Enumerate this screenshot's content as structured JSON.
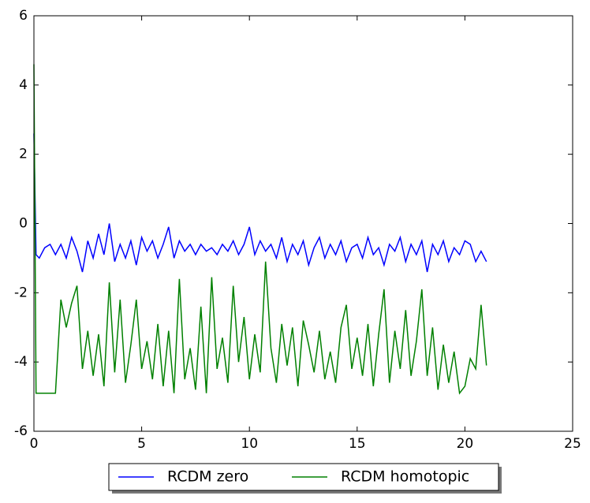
{
  "chart_data": {
    "type": "line",
    "x": [
      0,
      0.1,
      0.25,
      0.5,
      0.75,
      1,
      1.25,
      1.5,
      1.75,
      2,
      2.25,
      2.5,
      2.75,
      3,
      3.25,
      3.5,
      3.75,
      4,
      4.25,
      4.5,
      4.75,
      5,
      5.25,
      5.5,
      5.75,
      6,
      6.25,
      6.5,
      6.75,
      7,
      7.25,
      7.5,
      7.75,
      8,
      8.25,
      8.5,
      8.75,
      9,
      9.25,
      9.5,
      9.75,
      10,
      10.25,
      10.5,
      10.75,
      11,
      11.25,
      11.5,
      11.75,
      12,
      12.25,
      12.5,
      12.75,
      13,
      13.25,
      13.5,
      13.75,
      14,
      14.25,
      14.5,
      14.75,
      15,
      15.25,
      15.5,
      15.75,
      16,
      16.25,
      16.5,
      16.75,
      17,
      17.25,
      17.5,
      17.75,
      18,
      18.25,
      18.5,
      18.75,
      19,
      19.25,
      19.5,
      19.75,
      20,
      20.25,
      20.5,
      20.75,
      21
    ],
    "series": [
      {
        "name": "RCDM zero",
        "color": "#0000ff",
        "values": [
          2.6,
          -0.9,
          -1.0,
          -0.7,
          -0.6,
          -0.9,
          -0.6,
          -1.0,
          -0.4,
          -0.8,
          -1.4,
          -0.5,
          -1.0,
          -0.3,
          -0.9,
          0.0,
          -1.1,
          -0.6,
          -1.0,
          -0.5,
          -1.2,
          -0.4,
          -0.8,
          -0.5,
          -1.0,
          -0.6,
          -0.1,
          -1.0,
          -0.5,
          -0.8,
          -0.6,
          -0.9,
          -0.6,
          -0.8,
          -0.7,
          -0.9,
          -0.6,
          -0.8,
          -0.5,
          -0.9,
          -0.6,
          -0.1,
          -0.9,
          -0.5,
          -0.8,
          -0.6,
          -1.0,
          -0.4,
          -1.1,
          -0.6,
          -0.9,
          -0.5,
          -1.2,
          -0.7,
          -0.4,
          -1.0,
          -0.6,
          -0.9,
          -0.5,
          -1.1,
          -0.7,
          -0.6,
          -1.0,
          -0.4,
          -0.9,
          -0.7,
          -1.2,
          -0.6,
          -0.8,
          -0.4,
          -1.1,
          -0.6,
          -0.9,
          -0.5,
          -1.4,
          -0.6,
          -0.9,
          -0.5,
          -1.1,
          -0.7,
          -0.9,
          -0.5,
          -0.6,
          -1.1,
          -0.8,
          -1.1
        ]
      },
      {
        "name": "RCDM homotopic",
        "color": "#008000",
        "values": [
          4.6,
          -4.9,
          -4.9,
          -4.9,
          -4.9,
          -4.9,
          -2.2,
          -3.0,
          -2.3,
          -1.8,
          -4.2,
          -3.1,
          -4.4,
          -3.2,
          -4.7,
          -1.7,
          -4.3,
          -2.2,
          -4.6,
          -3.5,
          -2.2,
          -4.2,
          -3.4,
          -4.5,
          -2.9,
          -4.7,
          -3.1,
          -4.9,
          -1.6,
          -4.5,
          -3.6,
          -4.8,
          -2.4,
          -4.9,
          -1.55,
          -4.2,
          -3.3,
          -4.6,
          -1.8,
          -4.0,
          -2.7,
          -4.5,
          -3.2,
          -4.3,
          -1.1,
          -3.6,
          -4.6,
          -2.9,
          -4.1,
          -3.0,
          -4.7,
          -2.8,
          -3.5,
          -4.3,
          -3.1,
          -4.5,
          -3.7,
          -4.6,
          -3.0,
          -2.35,
          -4.2,
          -3.3,
          -4.4,
          -2.9,
          -4.7,
          -3.2,
          -1.9,
          -4.6,
          -3.1,
          -4.2,
          -2.5,
          -4.4,
          -3.4,
          -1.9,
          -4.4,
          -3.0,
          -4.8,
          -3.5,
          -4.6,
          -3.7,
          -4.9,
          -4.7,
          -3.9,
          -4.2,
          -2.35,
          -4.1
        ]
      }
    ],
    "xlim": [
      0,
      25
    ],
    "xticks": [
      0,
      5,
      10,
      15,
      20,
      25
    ],
    "ylim": [
      -6,
      6
    ],
    "yticks": [
      -6,
      -4,
      -2,
      0,
      2,
      4,
      6
    ],
    "legend": "lower center"
  }
}
